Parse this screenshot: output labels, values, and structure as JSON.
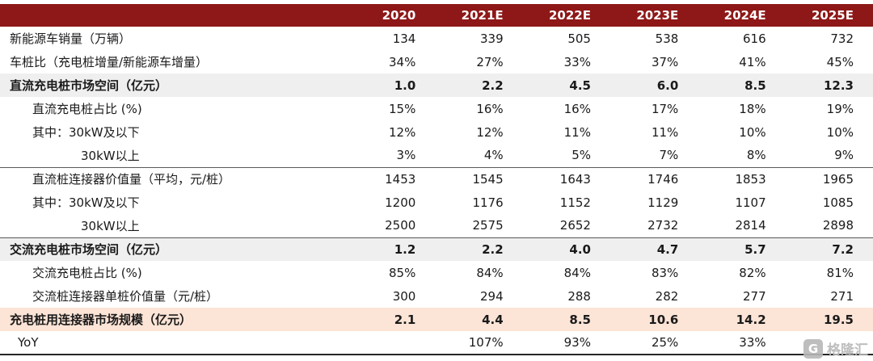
{
  "chart_data": {
    "type": "table",
    "header": {
      "label": "",
      "years": [
        "2020",
        "2021E",
        "2022E",
        "2023E",
        "2024E",
        "2025E"
      ]
    },
    "rows": [
      {
        "label": "新能源车销量（万辆）",
        "indent": 0,
        "style": "normal",
        "separator_below": false,
        "values": [
          "134",
          "339",
          "505",
          "538",
          "616",
          "732"
        ]
      },
      {
        "label": "车桩比（充电桩增量/新能源车增量）",
        "indent": 0,
        "style": "normal",
        "separator_below": false,
        "values": [
          "34%",
          "27%",
          "33%",
          "37%",
          "41%",
          "45%"
        ]
      },
      {
        "label": "直流充电桩市场空间（亿元）",
        "indent": 0,
        "style": "section",
        "separator_below": false,
        "values": [
          "1.0",
          "2.2",
          "4.5",
          "6.0",
          "8.5",
          "12.3"
        ]
      },
      {
        "label": "直流充电桩占比 (%)",
        "indent": 1,
        "style": "normal",
        "separator_below": false,
        "values": [
          "15%",
          "16%",
          "16%",
          "17%",
          "18%",
          "19%"
        ]
      },
      {
        "label": "其中：30kW及以下",
        "indent": 1,
        "style": "normal",
        "separator_below": false,
        "values": [
          "12%",
          "12%",
          "11%",
          "11%",
          "10%",
          "10%"
        ]
      },
      {
        "label": "30kW以上",
        "indent": 2,
        "style": "normal",
        "separator_below": true,
        "values": [
          "3%",
          "4%",
          "5%",
          "7%",
          "8%",
          "9%"
        ]
      },
      {
        "label": "直流桩连接器价值量（平均，元/桩）",
        "indent": 1,
        "style": "normal",
        "separator_below": false,
        "values": [
          "1453",
          "1545",
          "1643",
          "1746",
          "1853",
          "1965"
        ]
      },
      {
        "label": "其中：30kW及以下",
        "indent": 1,
        "style": "normal",
        "separator_below": false,
        "values": [
          "1200",
          "1176",
          "1152",
          "1129",
          "1107",
          "1085"
        ]
      },
      {
        "label": "30kW以上",
        "indent": 2,
        "style": "normal",
        "separator_below": true,
        "values": [
          "2500",
          "2575",
          "2652",
          "2732",
          "2814",
          "2898"
        ]
      },
      {
        "label": "交流充电桩市场空间（亿元）",
        "indent": 0,
        "style": "section",
        "separator_below": false,
        "values": [
          "1.2",
          "2.2",
          "4.0",
          "4.7",
          "5.7",
          "7.2"
        ]
      },
      {
        "label": "交流充电桩占比 (%)",
        "indent": 1,
        "style": "normal",
        "separator_below": false,
        "values": [
          "85%",
          "84%",
          "84%",
          "83%",
          "82%",
          "81%"
        ]
      },
      {
        "label": "交流桩连接器单桩价值量（元/桩）",
        "indent": 1,
        "style": "normal",
        "separator_below": false,
        "values": [
          "300",
          "294",
          "288",
          "282",
          "277",
          "271"
        ]
      },
      {
        "label": "充电桩用连接器市场规模（亿元）",
        "indent": 0,
        "style": "total",
        "separator_below": false,
        "values": [
          "2.1",
          "4.4",
          "8.5",
          "10.6",
          "14.2",
          "19.5"
        ]
      },
      {
        "label": "YoY",
        "indent": 3,
        "style": "normal",
        "separator_below": false,
        "values": [
          "",
          "107%",
          "93%",
          "25%",
          "33%",
          ""
        ]
      }
    ],
    "colors": {
      "header_bg": "#8e1818",
      "header_text": "#ffffff",
      "body_text": "#1a1a1a",
      "section_row_bg": "#efefef",
      "total_row_bg": "#fce4d6",
      "separator": "#595959",
      "table_bottom_border": "#262626"
    }
  },
  "watermark": {
    "icon": "gelonghui-logo",
    "icon_glyph": "G",
    "brand": "格隆汇",
    "color": "#b8b8b8"
  }
}
